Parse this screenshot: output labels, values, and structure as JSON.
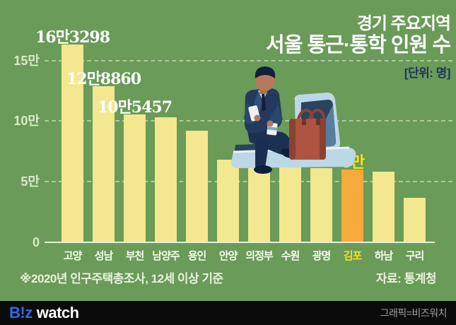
{
  "header": {
    "title_line1": "경기 주요지역",
    "title_line2": "서울 통근·통학 인원 수",
    "unit": "[단위: 명]"
  },
  "chart_data": {
    "type": "bar",
    "title": "경기 주요지역 서울 통근·통학 인원 수",
    "unit_label": "[단위: 명]",
    "categories": [
      "고양",
      "성남",
      "부천",
      "남양주",
      "용인",
      "안양",
      "의정부",
      "수원",
      "광명",
      "김포",
      "하남",
      "구리"
    ],
    "values": [
      163298,
      128860,
      105457,
      103000,
      92000,
      68000,
      64500,
      63000,
      61000,
      60000,
      58500,
      37000
    ],
    "bar_labels": [
      "16만3298",
      "12만8860",
      "10만5457",
      "",
      "",
      "",
      "",
      "",
      "",
      "6만",
      "",
      ""
    ],
    "highlight_index": 9,
    "y_ticks": [
      {
        "label": "0",
        "value": 0
      },
      {
        "label": "5만",
        "value": 50000
      },
      {
        "label": "10만",
        "value": 100000
      },
      {
        "label": "15만",
        "value": 150000
      }
    ],
    "ylim": [
      0,
      175000
    ],
    "grid": "horizontal-dashed",
    "legend": "none",
    "colors": {
      "background": "#6A9B58",
      "bar": "#F3E78F",
      "bar_highlight": "#F7A93B",
      "highlight_text": "#F8E11A",
      "axis_text": "#DCE8CC",
      "category_text": "#F6FAEE",
      "value_label_text": "#FFFFFF"
    }
  },
  "footer": {
    "note": "※2020년 인구주택총조사, 12세 이상 기준",
    "source": "자료: 통계청"
  },
  "bottom_bar": {
    "logo_biz": "B!z",
    "logo_watch": "watch",
    "credit": "그래픽=비즈워치",
    "logo_color": "#2F6CE3",
    "background": "#0B0B0B"
  },
  "illustration": {
    "description": "suited man seated on a bench holding a phone and coffee cup next to a briefcase",
    "colors": {
      "suit": "#233A5E",
      "skin": "#B5795B",
      "bench": "#BCD7E6",
      "bench_shadow": "#28445F",
      "bag": "#AF5440"
    }
  }
}
